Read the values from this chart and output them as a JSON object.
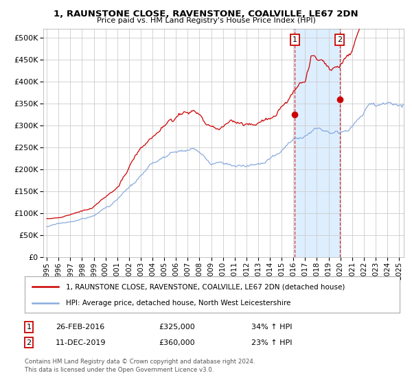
{
  "title_line1": "1, RAUNSTONE CLOSE, RAVENSTONE, COALVILLE, LE67 2DN",
  "title_line2": "Price paid vs. HM Land Registry's House Price Index (HPI)",
  "ytick_values": [
    0,
    50000,
    100000,
    150000,
    200000,
    250000,
    300000,
    350000,
    400000,
    450000,
    500000
  ],
  "ylim": [
    0,
    520000
  ],
  "xlim_start": 1994.7,
  "xlim_end": 2025.4,
  "sale1_x": 2016.12,
  "sale1_y": 325000,
  "sale2_x": 2019.94,
  "sale2_y": 360000,
  "red_color": "#cc0000",
  "blue_color": "#88aadd",
  "shade_color": "#ddeeff",
  "bg_color": "#ffffff",
  "grid_color": "#cccccc",
  "legend_line1": "1, RAUNSTONE CLOSE, RAVENSTONE, COALVILLE, LE67 2DN (detached house)",
  "legend_line2": "HPI: Average price, detached house, North West Leicestershire",
  "sale1_date": "26-FEB-2016",
  "sale1_price": "£325,000",
  "sale1_hpi": "34% ↑ HPI",
  "sale2_date": "11-DEC-2019",
  "sale2_price": "£360,000",
  "sale2_hpi": "23% ↑ HPI",
  "footnote1": "Contains HM Land Registry data © Crown copyright and database right 2024.",
  "footnote2": "This data is licensed under the Open Government Licence v3.0.",
  "xtick_years": [
    1995,
    1996,
    1997,
    1998,
    1999,
    2000,
    2001,
    2002,
    2003,
    2004,
    2005,
    2006,
    2007,
    2008,
    2009,
    2010,
    2011,
    2012,
    2013,
    2014,
    2015,
    2016,
    2017,
    2018,
    2019,
    2020,
    2021,
    2022,
    2023,
    2024,
    2025
  ]
}
